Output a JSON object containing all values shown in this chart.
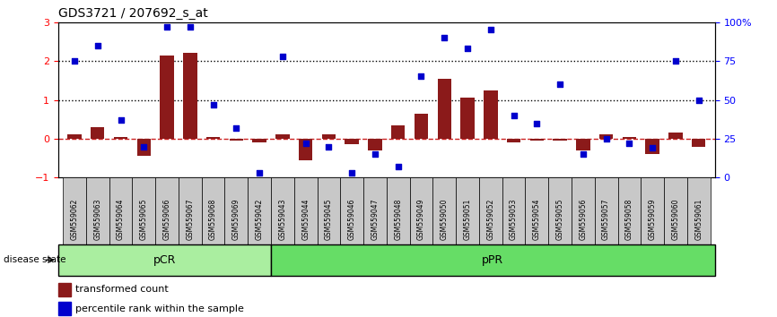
{
  "title": "GDS3721 / 207692_s_at",
  "samples": [
    "GSM559062",
    "GSM559063",
    "GSM559064",
    "GSM559065",
    "GSM559066",
    "GSM559067",
    "GSM559068",
    "GSM559069",
    "GSM559042",
    "GSM559043",
    "GSM559044",
    "GSM559045",
    "GSM559046",
    "GSM559047",
    "GSM559048",
    "GSM559049",
    "GSM559050",
    "GSM559051",
    "GSM559052",
    "GSM559053",
    "GSM559054",
    "GSM559055",
    "GSM559056",
    "GSM559057",
    "GSM559058",
    "GSM559059",
    "GSM559060",
    "GSM559061"
  ],
  "transformed_count": [
    0.12,
    0.3,
    0.05,
    -0.45,
    2.15,
    2.2,
    0.05,
    -0.05,
    -0.1,
    0.12,
    -0.55,
    0.12,
    -0.15,
    -0.3,
    0.35,
    0.65,
    1.55,
    1.05,
    1.25,
    -0.1,
    -0.05,
    -0.05,
    -0.3,
    0.12,
    0.05,
    -0.4,
    0.15,
    -0.2
  ],
  "percentile_rank": [
    75,
    85,
    37,
    20,
    97,
    97,
    47,
    32,
    3,
    78,
    22,
    20,
    3,
    15,
    7,
    65,
    90,
    83,
    95,
    40,
    35,
    60,
    15,
    25,
    22,
    19,
    75,
    50
  ],
  "pCR_count": 9,
  "pPR_count": 19,
  "ylim_left": [
    -1,
    3
  ],
  "ylim_right": [
    0,
    100
  ],
  "bar_color": "#8B1A1A",
  "scatter_color": "#0000CD",
  "dashed_line_color": "#CC2222",
  "dotted_line_color": "#000000",
  "pCR_color": "#AAEEA0",
  "pPR_color": "#66DD66",
  "tick_bg_color": "#C8C8C8",
  "label_bar": "transformed count",
  "label_scatter": "percentile rank within the sample",
  "disease_state_label": "disease state",
  "pCR_label": "pCR",
  "pPR_label": "pPR"
}
